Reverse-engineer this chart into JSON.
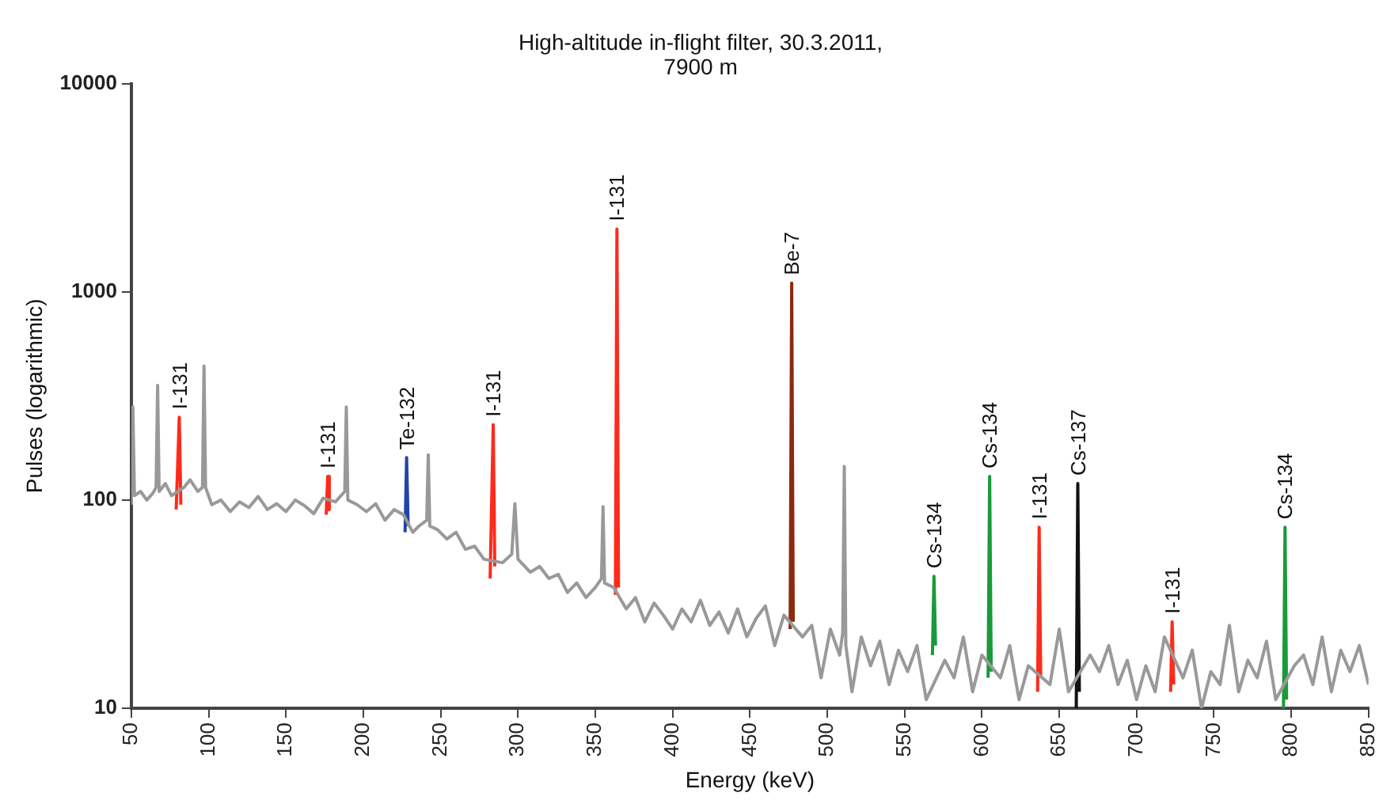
{
  "chart_data": {
    "type": "line",
    "title": "High-altitude in-flight filter, 30.3.2011,\n7900 m",
    "xlabel": "Energy (keV)",
    "ylabel": "Pulses (logarithmic)",
    "log": "y",
    "grid": false,
    "legend": false,
    "marker": "none",
    "line_style": "solid",
    "xlim": [
      50,
      850
    ],
    "xticks": [
      50,
      100,
      150,
      200,
      250,
      300,
      350,
      400,
      450,
      500,
      550,
      600,
      650,
      700,
      750,
      800,
      850
    ],
    "ylim": [
      10,
      10000
    ],
    "yticks": [
      10,
      100,
      1000,
      10000
    ],
    "series": [
      {
        "color": "#999999",
        "x": [
          50,
          51,
          52,
          56,
          60,
          64,
          66,
          67,
          68,
          72,
          76,
          84,
          88,
          93,
          96,
          97,
          98,
          102,
          108,
          114,
          120,
          126,
          132,
          138,
          144,
          150,
          156,
          162,
          168,
          174,
          182,
          188,
          189,
          190,
          196,
          202,
          208,
          214,
          220,
          226,
          232,
          236,
          241,
          242,
          243,
          248,
          254,
          260,
          266,
          272,
          278,
          290,
          296,
          298,
          300,
          308,
          314,
          320,
          326,
          332,
          338,
          344,
          350,
          354,
          355,
          356,
          362,
          370,
          376,
          382,
          388,
          394,
          400,
          406,
          412,
          418,
          424,
          430,
          436,
          442,
          448,
          454,
          460,
          466,
          472,
          484,
          490,
          496,
          502,
          508,
          510,
          511,
          512,
          516,
          522,
          528,
          534,
          540,
          546,
          552,
          558,
          564,
          576,
          582,
          588,
          594,
          600,
          612,
          618,
          624,
          630,
          644,
          650,
          656,
          670,
          676,
          682,
          688,
          694,
          700,
          706,
          712,
          718,
          730,
          736,
          742,
          748,
          754,
          760,
          766,
          772,
          778,
          784,
          790,
          802,
          808,
          814,
          820,
          826,
          832,
          838,
          844,
          850
        ],
        "values": [
          95,
          280,
          105,
          110,
          100,
          108,
          115,
          355,
          110,
          120,
          105,
          115,
          125,
          110,
          115,
          440,
          115,
          95,
          100,
          88,
          98,
          92,
          104,
          90,
          96,
          88,
          100,
          94,
          86,
          102,
          98,
          110,
          280,
          100,
          95,
          88,
          96,
          80,
          90,
          85,
          70,
          75,
          80,
          165,
          75,
          72,
          65,
          70,
          58,
          60,
          52,
          50,
          55,
          96,
          52,
          45,
          48,
          42,
          44,
          36,
          40,
          34,
          38,
          42,
          93,
          40,
          38,
          30,
          34,
          26,
          32,
          28,
          24,
          30,
          26,
          33,
          25,
          29,
          23,
          30,
          22,
          27,
          31,
          20,
          28,
          22,
          25,
          14,
          24,
          18,
          23,
          145,
          20,
          12,
          22,
          16,
          21,
          13,
          19,
          15,
          20,
          11,
          17,
          14,
          22,
          12,
          18,
          14,
          20,
          11,
          16,
          13,
          24,
          12,
          18,
          15,
          20,
          13,
          17,
          11,
          16,
          12,
          22,
          14,
          19,
          10,
          15,
          13,
          25,
          12,
          17,
          14,
          21,
          11,
          16,
          18,
          13,
          22,
          12,
          19,
          15,
          20,
          13
        ]
      },
      {
        "color": "#ff2a1a",
        "x": [
          79,
          81,
          82
        ],
        "values": [
          90,
          250,
          95
        ]
      },
      {
        "color": "#ff2a1a",
        "x": [
          176,
          177,
          178
        ],
        "values": [
          85,
          130,
          90
        ]
      },
      {
        "color": "#2244aa",
        "x": [
          227,
          228,
          229
        ],
        "values": [
          70,
          160,
          75
        ]
      },
      {
        "color": "#ff2a1a",
        "x": [
          282,
          284,
          285
        ],
        "values": [
          42,
          230,
          48
        ]
      },
      {
        "color": "#ff2a1a",
        "x": [
          363,
          364,
          365
        ],
        "values": [
          35,
          2000,
          38
        ]
      },
      {
        "color": "#8b2a10",
        "x": [
          476,
          477,
          478
        ],
        "values": [
          24,
          1100,
          26
        ]
      },
      {
        "color": "#1a9a3a",
        "x": [
          568,
          569,
          570
        ],
        "values": [
          18,
          43,
          20
        ]
      },
      {
        "color": "#1a9a3a",
        "x": [
          604,
          605,
          606
        ],
        "values": [
          14,
          130,
          15
        ]
      },
      {
        "color": "#ff2a1a",
        "x": [
          636,
          637,
          638
        ],
        "values": [
          12,
          74,
          14
        ]
      },
      {
        "color": "#111111",
        "x": [
          661,
          662,
          663
        ],
        "values": [
          10,
          120,
          12
        ]
      },
      {
        "color": "#ff2a1a",
        "x": [
          722,
          723,
          724
        ],
        "values": [
          12,
          26,
          13
        ]
      },
      {
        "color": "#1a9a3a",
        "x": [
          795,
          796,
          797
        ],
        "values": [
          10,
          74,
          11
        ]
      }
    ],
    "annotations": [
      {
        "text": "I-131",
        "x": 81,
        "y": 250
      },
      {
        "text": "I-131",
        "x": 177,
        "y": 130
      },
      {
        "text": "Te-132",
        "x": 228,
        "y": 160
      },
      {
        "text": "I-131",
        "x": 284,
        "y": 230
      },
      {
        "text": "I-131",
        "x": 364,
        "y": 2000
      },
      {
        "text": "Be-7",
        "x": 477,
        "y": 1100
      },
      {
        "text": "Cs-134",
        "x": 569,
        "y": 43
      },
      {
        "text": "Cs-134",
        "x": 605,
        "y": 130
      },
      {
        "text": "I-131",
        "x": 637,
        "y": 74
      },
      {
        "text": "Cs-137",
        "x": 662,
        "y": 120
      },
      {
        "text": "I-131",
        "x": 723,
        "y": 26
      },
      {
        "text": "Cs-134",
        "x": 796,
        "y": 74
      }
    ]
  }
}
